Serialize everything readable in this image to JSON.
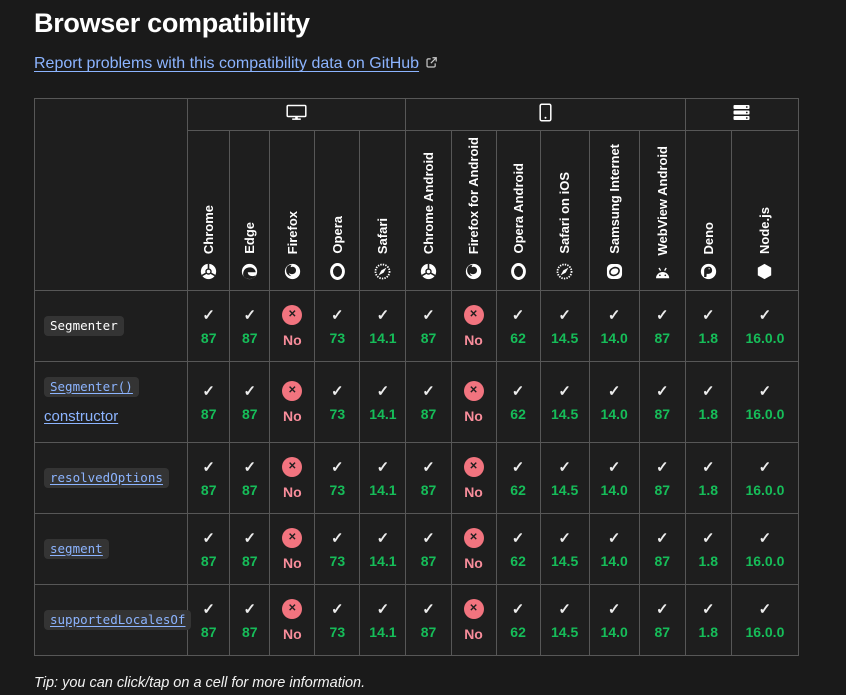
{
  "page": {
    "title": "Browser compatibility",
    "report_link_label": "Report problems with this compatibility data on GitHub",
    "tip": "Tip: you can click/tap on a cell for more information."
  },
  "colors": {
    "link": "#8cb4ff",
    "supported_text": "#16bd59",
    "unsupported_text": "#f88d9b",
    "unsupported_badge": "#f2747f",
    "background": "#1a1a1a",
    "table_border": "#575757"
  },
  "table": {
    "groups": [
      {
        "id": "desktop",
        "icon": "desktop-icon",
        "span": 5
      },
      {
        "id": "mobile",
        "icon": "mobile-icon",
        "span": 6
      },
      {
        "id": "server",
        "icon": "server-icon",
        "span": 2
      }
    ],
    "browsers": [
      {
        "label": "Chrome",
        "icon": "chrome-icon"
      },
      {
        "label": "Edge",
        "icon": "edge-icon"
      },
      {
        "label": "Firefox",
        "icon": "firefox-icon"
      },
      {
        "label": "Opera",
        "icon": "opera-icon"
      },
      {
        "label": "Safari",
        "icon": "safari-icon"
      },
      {
        "label": "Chrome Android",
        "icon": "chrome-icon"
      },
      {
        "label": "Firefox for Android",
        "icon": "firefox-icon"
      },
      {
        "label": "Opera Android",
        "icon": "opera-icon"
      },
      {
        "label": "Safari on iOS",
        "icon": "safari-icon"
      },
      {
        "label": "Samsung Internet",
        "icon": "samsung-internet-icon"
      },
      {
        "label": "WebView Android",
        "icon": "webview-android-icon"
      },
      {
        "label": "Deno",
        "icon": "deno-icon"
      },
      {
        "label": "Node.js",
        "icon": "nodejs-icon"
      }
    ],
    "yes_mark": "✓",
    "no_mark": "✕",
    "no_label": "No",
    "rows": [
      {
        "feature_code": "Segmenter",
        "is_link": false,
        "suffix": "",
        "support": [
          "87",
          "87",
          "No",
          "73",
          "14.1",
          "87",
          "No",
          "62",
          "14.5",
          "14.0",
          "87",
          "1.8",
          "16.0.0"
        ]
      },
      {
        "feature_code": "Segmenter()",
        "is_link": true,
        "suffix": "constructor",
        "support": [
          "87",
          "87",
          "No",
          "73",
          "14.1",
          "87",
          "No",
          "62",
          "14.5",
          "14.0",
          "87",
          "1.8",
          "16.0.0"
        ]
      },
      {
        "feature_code": "resolvedOptions",
        "is_link": true,
        "suffix": "",
        "support": [
          "87",
          "87",
          "No",
          "73",
          "14.1",
          "87",
          "No",
          "62",
          "14.5",
          "14.0",
          "87",
          "1.8",
          "16.0.0"
        ]
      },
      {
        "feature_code": "segment",
        "is_link": true,
        "suffix": "",
        "support": [
          "87",
          "87",
          "No",
          "73",
          "14.1",
          "87",
          "No",
          "62",
          "14.5",
          "14.0",
          "87",
          "1.8",
          "16.0.0"
        ]
      },
      {
        "feature_code": "supportedLocalesOf",
        "is_link": true,
        "suffix": "",
        "support": [
          "87",
          "87",
          "No",
          "73",
          "14.1",
          "87",
          "No",
          "62",
          "14.5",
          "14.0",
          "87",
          "1.8",
          "16.0.0"
        ]
      }
    ]
  }
}
